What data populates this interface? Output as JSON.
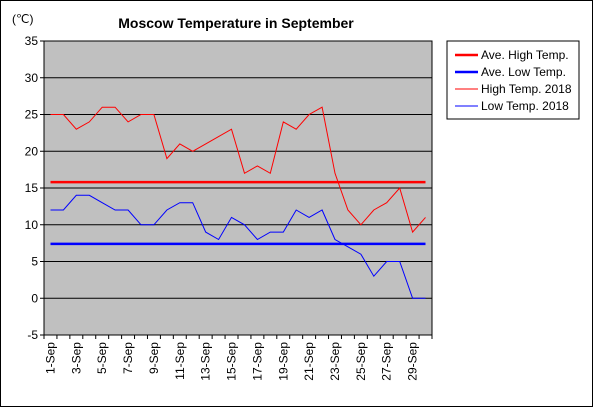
{
  "chart_data": {
    "type": "line",
    "title": "Moscow Temperature in September",
    "y_unit": "(℃)",
    "ylim": [
      -5,
      35
    ],
    "y_ticks": [
      -5,
      0,
      5,
      10,
      15,
      20,
      25,
      30,
      35
    ],
    "x_tick_labels": [
      "1-Sep",
      "3-Sep",
      "5-Sep",
      "7-Sep",
      "9-Sep",
      "11-Sep",
      "13-Sep",
      "15-Sep",
      "17-Sep",
      "19-Sep",
      "21-Sep",
      "23-Sep",
      "25-Sep",
      "27-Sep",
      "29-Sep"
    ],
    "x": [
      1,
      2,
      3,
      4,
      5,
      6,
      7,
      8,
      9,
      10,
      11,
      12,
      13,
      14,
      15,
      16,
      17,
      18,
      19,
      20,
      21,
      22,
      23,
      24,
      25,
      26,
      27,
      28,
      29,
      30
    ],
    "grid": true,
    "legend_position": "right",
    "series": [
      {
        "name": "Ave. High Temp.",
        "color": "#ff0000",
        "style": "thick",
        "values": [
          15.8,
          15.8,
          15.8,
          15.8,
          15.8,
          15.8,
          15.8,
          15.8,
          15.8,
          15.8,
          15.8,
          15.8,
          15.8,
          15.8,
          15.8,
          15.8,
          15.8,
          15.8,
          15.8,
          15.8,
          15.8,
          15.8,
          15.8,
          15.8,
          15.8,
          15.8,
          15.8,
          15.8,
          15.8,
          15.8
        ]
      },
      {
        "name": "Ave. Low Temp.",
        "color": "#0000ff",
        "style": "thick",
        "values": [
          7.4,
          7.4,
          7.4,
          7.4,
          7.4,
          7.4,
          7.4,
          7.4,
          7.4,
          7.4,
          7.4,
          7.4,
          7.4,
          7.4,
          7.4,
          7.4,
          7.4,
          7.4,
          7.4,
          7.4,
          7.4,
          7.4,
          7.4,
          7.4,
          7.4,
          7.4,
          7.4,
          7.4,
          7.4,
          7.4
        ]
      },
      {
        "name": "High Temp. 2018",
        "color": "#ff0000",
        "style": "thin",
        "values": [
          25,
          25,
          23,
          24,
          26,
          26,
          24,
          25,
          25,
          19,
          21,
          20,
          21,
          22,
          23,
          17,
          18,
          17,
          24,
          23,
          25,
          26,
          17,
          12,
          10,
          12,
          13,
          15,
          9,
          11
        ]
      },
      {
        "name": "Low Temp. 2018",
        "color": "#0000ff",
        "style": "thin",
        "values": [
          12,
          12,
          14,
          14,
          13,
          12,
          12,
          10,
          10,
          12,
          13,
          13,
          9,
          8,
          11,
          10,
          8,
          9,
          9,
          12,
          11,
          12,
          8,
          7,
          6,
          3,
          5,
          5,
          0,
          0
        ]
      }
    ]
  }
}
